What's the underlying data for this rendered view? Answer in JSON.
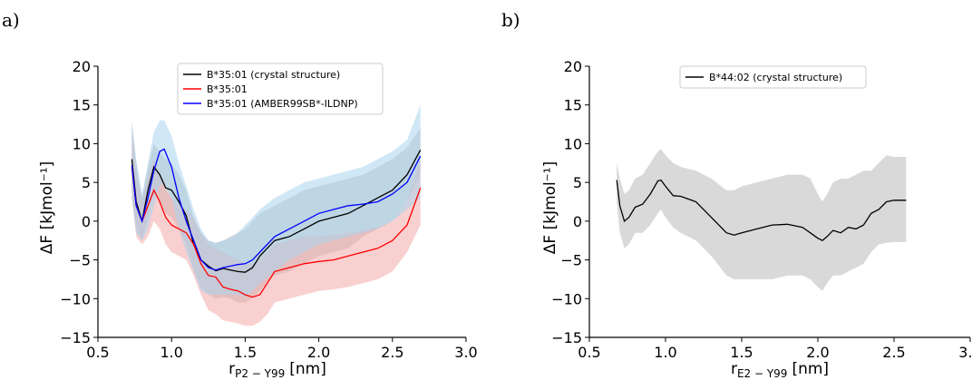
{
  "chart_data": [
    {
      "panel_label": "a)",
      "type": "line",
      "xlabel_main": "r",
      "xlabel_sub": "P2 − Y99",
      "xlabel_unit": "[nm]",
      "ylabel": "ΔF [kJmol⁻¹]",
      "xlim": [
        0.5,
        3.0
      ],
      "ylim": [
        -15,
        20
      ],
      "xticks": [
        "0.5",
        "1.0",
        "1.5",
        "2.0",
        "2.5",
        "3.0"
      ],
      "yticks": [
        "20",
        "15",
        "10",
        "5",
        "0",
        "−5",
        "−10",
        "−15"
      ],
      "legend_position": "top",
      "series": [
        {
          "name": "B*35:01 (crystal structure)",
          "color": "#000000",
          "band_color": "#b7b7b7",
          "x": [
            0.73,
            0.76,
            0.8,
            0.84,
            0.88,
            0.92,
            0.96,
            1.0,
            1.05,
            1.1,
            1.15,
            1.2,
            1.25,
            1.3,
            1.35,
            1.4,
            1.45,
            1.5,
            1.55,
            1.6,
            1.7,
            1.8,
            1.9,
            2.0,
            2.1,
            2.2,
            2.3,
            2.4,
            2.5,
            2.6,
            2.69
          ],
          "y": [
            8.0,
            2.5,
            0.0,
            4.0,
            7.0,
            6.0,
            4.3,
            4.0,
            2.5,
            0.7,
            -3.0,
            -5.0,
            -5.8,
            -6.4,
            -6.1,
            -6.3,
            -6.5,
            -6.6,
            -6.0,
            -4.5,
            -2.5,
            -2.0,
            -1.0,
            0.0,
            0.5,
            1.0,
            2.0,
            3.0,
            4.0,
            6.0,
            9.2
          ],
          "band_upper": [
            12.5,
            7.5,
            3.0,
            7.0,
            10.0,
            9.0,
            8.0,
            7.5,
            6.0,
            4.0,
            0.5,
            -1.5,
            -2.5,
            -2.8,
            -2.5,
            -2.0,
            -1.5,
            -1.0,
            0.0,
            1.0,
            2.0,
            3.0,
            4.0,
            4.5,
            5.0,
            5.5,
            6.0,
            7.0,
            8.0,
            9.5,
            12.0
          ],
          "band_lower": [
            4.0,
            -1.0,
            -2.5,
            0.5,
            3.5,
            2.5,
            1.0,
            0.5,
            -1.0,
            -3.0,
            -6.5,
            -8.5,
            -9.5,
            -10.0,
            -9.8,
            -10.0,
            -10.5,
            -10.5,
            -10.0,
            -9.0,
            -7.0,
            -6.5,
            -5.5,
            -4.5,
            -4.0,
            -3.5,
            -2.0,
            -1.0,
            0.0,
            2.5,
            6.0
          ]
        },
        {
          "name": "B*35:01",
          "color": "#ff0000",
          "band_color": "#f4a9a9",
          "x": [
            0.73,
            0.76,
            0.8,
            0.84,
            0.88,
            0.92,
            0.96,
            1.0,
            1.05,
            1.1,
            1.15,
            1.2,
            1.25,
            1.3,
            1.35,
            1.4,
            1.45,
            1.5,
            1.55,
            1.6,
            1.65,
            1.7,
            1.8,
            1.9,
            2.0,
            2.1,
            2.2,
            2.3,
            2.4,
            2.5,
            2.6,
            2.69
          ],
          "y": [
            7.0,
            2.0,
            0.0,
            2.0,
            4.0,
            2.5,
            0.5,
            -0.5,
            -1.0,
            -1.5,
            -3.0,
            -5.5,
            -7.0,
            -7.2,
            -8.5,
            -8.8,
            -9.0,
            -9.5,
            -9.8,
            -9.5,
            -8.0,
            -6.5,
            -6.0,
            -5.5,
            -5.2,
            -5.0,
            -4.5,
            -4.0,
            -3.5,
            -2.5,
            -0.5,
            4.3
          ],
          "band_upper": [
            12.0,
            6.5,
            2.5,
            6.0,
            8.0,
            6.0,
            4.0,
            3.0,
            2.0,
            1.5,
            0.5,
            -1.5,
            -3.0,
            -3.5,
            -4.0,
            -4.5,
            -5.0,
            -5.5,
            -5.5,
            -5.0,
            -4.0,
            -3.0,
            -2.5,
            -2.0,
            -2.0,
            -1.8,
            -1.5,
            -1.2,
            -0.8,
            0.0,
            2.5,
            8.0
          ],
          "band_lower": [
            3.0,
            -2.0,
            -3.0,
            -2.0,
            0.0,
            -1.0,
            -3.0,
            -4.0,
            -4.5,
            -5.0,
            -7.0,
            -9.5,
            -11.5,
            -12.0,
            -12.8,
            -13.0,
            -13.2,
            -13.5,
            -13.5,
            -13.0,
            -12.0,
            -10.5,
            -10.0,
            -9.5,
            -9.0,
            -8.8,
            -8.5,
            -8.0,
            -7.5,
            -6.5,
            -4.0,
            -0.5
          ]
        },
        {
          "name": "B*35:01 (AMBER99SB*-ILDNP)",
          "color": "#0000ff",
          "band_color": "#a9d3ee",
          "x": [
            0.73,
            0.76,
            0.8,
            0.84,
            0.88,
            0.92,
            0.95,
            1.0,
            1.05,
            1.1,
            1.15,
            1.2,
            1.25,
            1.3,
            1.35,
            1.4,
            1.45,
            1.5,
            1.55,
            1.6,
            1.7,
            1.8,
            1.9,
            2.0,
            2.1,
            2.2,
            2.3,
            2.4,
            2.5,
            2.6,
            2.69
          ],
          "y": [
            7.2,
            2.0,
            0.0,
            3.0,
            6.5,
            9.0,
            9.3,
            7.0,
            3.0,
            0.0,
            -2.5,
            -5.0,
            -6.0,
            -6.3,
            -6.0,
            -5.8,
            -5.6,
            -5.5,
            -5.0,
            -4.0,
            -2.0,
            -1.0,
            0.0,
            1.0,
            1.5,
            2.0,
            2.2,
            2.5,
            3.5,
            5.0,
            8.4
          ],
          "band_upper": [
            13.0,
            8.0,
            3.5,
            7.5,
            11.5,
            13.0,
            13.0,
            11.0,
            7.5,
            4.5,
            1.5,
            -1.0,
            -2.5,
            -2.8,
            -2.5,
            -2.2,
            -1.5,
            -0.5,
            0.5,
            1.5,
            3.0,
            4.0,
            5.0,
            5.5,
            6.0,
            6.5,
            7.0,
            8.0,
            9.0,
            10.5,
            15.0
          ],
          "band_lower": [
            3.0,
            -1.5,
            -2.5,
            -1.0,
            2.0,
            4.5,
            5.0,
            3.0,
            -1.0,
            -4.0,
            -6.5,
            -9.0,
            -9.5,
            -9.5,
            -9.5,
            -9.5,
            -9.5,
            -9.8,
            -9.0,
            -8.0,
            -6.5,
            -5.0,
            -4.0,
            -3.0,
            -2.5,
            -2.0,
            -1.5,
            -1.0,
            0.0,
            1.5,
            3.0
          ]
        }
      ]
    },
    {
      "panel_label": "b)",
      "type": "line",
      "xlabel_main": "r",
      "xlabel_sub": "E2 − Y99",
      "xlabel_unit": "[nm]",
      "ylabel": "ΔF [kJmol⁻¹]",
      "xlim": [
        0.5,
        3.0
      ],
      "ylim": [
        -15,
        20
      ],
      "xticks": [
        "0.5",
        "1.0",
        "1.5",
        "2.0",
        "2.5",
        "3.0"
      ],
      "yticks": [
        "20",
        "15",
        "10",
        "5",
        "0",
        "−5",
        "−10",
        "−15"
      ],
      "legend_position": "top",
      "series": [
        {
          "name": "B*44:02 (crystal structure)",
          "color": "#000000",
          "band_color": "#d9d9d9",
          "x": [
            0.68,
            0.7,
            0.73,
            0.76,
            0.8,
            0.85,
            0.9,
            0.95,
            0.97,
            1.0,
            1.05,
            1.1,
            1.2,
            1.3,
            1.4,
            1.45,
            1.5,
            1.6,
            1.7,
            1.8,
            1.9,
            1.95,
            2.0,
            2.03,
            2.06,
            2.1,
            2.15,
            2.2,
            2.25,
            2.3,
            2.35,
            2.4,
            2.45,
            2.5,
            2.58
          ],
          "y": [
            5.3,
            2.0,
            0.0,
            0.5,
            1.8,
            2.2,
            3.5,
            5.2,
            5.3,
            4.5,
            3.3,
            3.2,
            2.5,
            0.5,
            -1.5,
            -1.8,
            -1.5,
            -1.0,
            -0.5,
            -0.4,
            -0.8,
            -1.5,
            -2.2,
            -2.5,
            -2.0,
            -1.2,
            -1.5,
            -0.8,
            -1.0,
            -0.5,
            1.0,
            1.5,
            2.5,
            2.7,
            2.7
          ],
          "band_upper": [
            7.5,
            5.5,
            3.5,
            4.0,
            5.5,
            6.0,
            7.5,
            9.0,
            9.3,
            8.5,
            7.5,
            7.0,
            6.5,
            5.5,
            4.0,
            4.0,
            4.5,
            5.0,
            5.5,
            6.0,
            6.0,
            5.5,
            3.5,
            2.5,
            3.5,
            5.0,
            5.5,
            5.5,
            6.0,
            6.5,
            6.5,
            7.5,
            8.5,
            8.3,
            8.3
          ],
          "band_lower": [
            2.5,
            -1.5,
            -3.5,
            -3.0,
            -1.5,
            -1.5,
            -0.5,
            1.0,
            1.5,
            0.5,
            -0.8,
            -1.5,
            -2.5,
            -4.5,
            -7.0,
            -7.5,
            -7.5,
            -7.5,
            -7.5,
            -7.0,
            -7.0,
            -7.5,
            -8.5,
            -9.0,
            -8.0,
            -7.0,
            -7.0,
            -6.5,
            -6.0,
            -5.5,
            -4.0,
            -3.0,
            -2.8,
            -2.7,
            -2.7
          ]
        }
      ]
    }
  ]
}
